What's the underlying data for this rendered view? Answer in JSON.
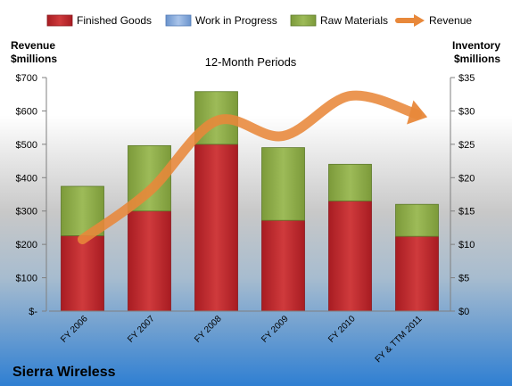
{
  "chart_data": {
    "type": "bar",
    "stacked": true,
    "title": "12-Month Periods",
    "company": "Sierra Wireless",
    "y_left_label": [
      "Revenue",
      "$millions"
    ],
    "y_right_label": [
      "Inventory",
      "$millions"
    ],
    "categories": [
      "FY 2006",
      "FY 2007",
      "FY 2008",
      "FY 2009",
      "FY 2010",
      "FY & TTM 2011"
    ],
    "series": [
      {
        "name": "Finished Goods",
        "axis": "right",
        "kind": "bar",
        "color": "#c0282d",
        "values": [
          11.3,
          15.0,
          25.0,
          13.6,
          16.5,
          11.2
        ]
      },
      {
        "name": "Work in Progress",
        "axis": "right",
        "kind": "bar",
        "color": "#7ea6db",
        "values": [
          0,
          0,
          0,
          0,
          0,
          0
        ]
      },
      {
        "name": "Raw Materials",
        "axis": "right",
        "kind": "bar",
        "color": "#8fae4a",
        "values": [
          7.4,
          9.8,
          7.9,
          10.9,
          5.5,
          4.8
        ]
      },
      {
        "name": "Revenue",
        "axis": "left",
        "kind": "line",
        "color": "#e8883a",
        "values": [
          215,
          360,
          570,
          525,
          645,
          590
        ]
      }
    ],
    "y_left": {
      "ylim": [
        0,
        700
      ],
      "ticks": [
        "$-",
        "$100",
        "$200",
        "$300",
        "$400",
        "$500",
        "$600",
        "$700"
      ]
    },
    "y_right": {
      "ylim": [
        0,
        35
      ],
      "ticks": [
        "$0",
        "$5",
        "$10",
        "$15",
        "$20",
        "$25",
        "$30",
        "$35"
      ]
    },
    "legend_position": "top",
    "grid": false
  }
}
